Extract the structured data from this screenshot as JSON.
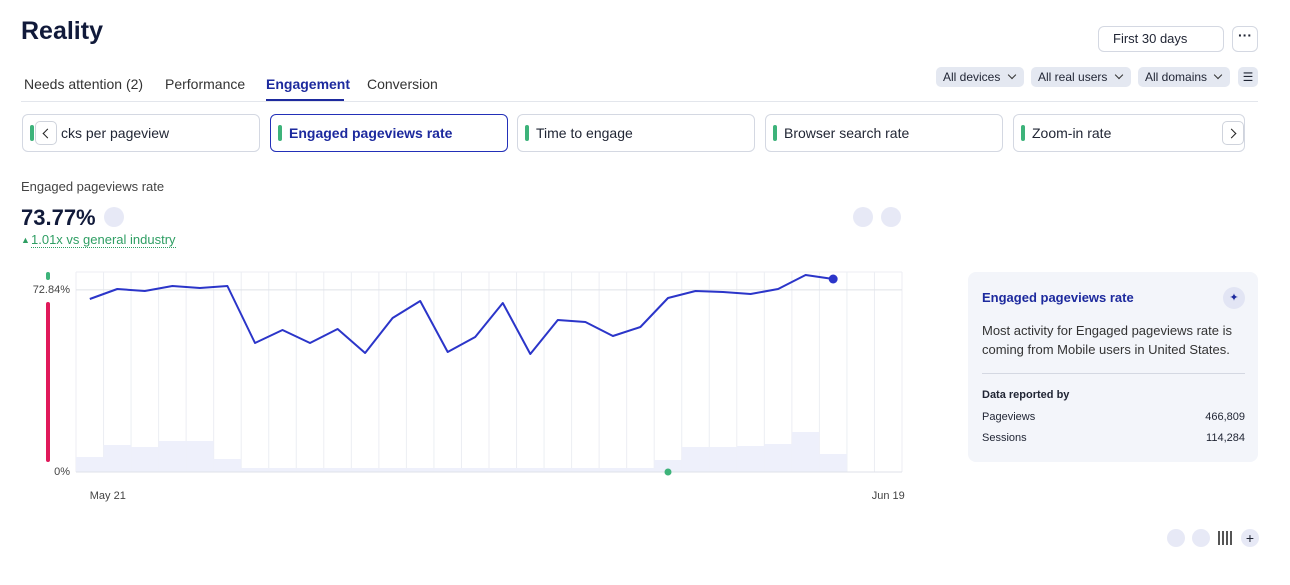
{
  "header": {
    "title": "Reality",
    "date_range": "First 30 days"
  },
  "tabs": [
    "Needs attention (2)",
    "Performance",
    "Engagement",
    "Conversion"
  ],
  "filters": [
    "All devices",
    "All real users",
    "All domains"
  ],
  "metric_cards": [
    "cks per pageview",
    "Engaged pageviews rate",
    "Time to engage",
    "Browser search rate",
    "Zoom-in rate"
  ],
  "metric": {
    "name": "Engaged pageviews rate",
    "value": "73.77%",
    "comparison": "1.01x vs general industry"
  },
  "chart_data": {
    "type": "line",
    "categories": [
      "May 21",
      null,
      null,
      null,
      null,
      null,
      null,
      null,
      null,
      null,
      null,
      null,
      null,
      null,
      null,
      null,
      null,
      null,
      null,
      null,
      null,
      null,
      null,
      null,
      null,
      null,
      null,
      null,
      null,
      "Jun 19"
    ],
    "series": [
      {
        "color": "#2b35c9",
        "values": [
          69.2,
          73.2,
          72.4,
          74.4,
          73.6,
          74.4,
          51.6,
          56.8,
          51.6,
          57.2,
          47.6,
          61.6,
          68.4,
          48.0,
          54.0,
          67.6,
          47.2,
          60.8,
          60.0,
          54.4,
          58.0,
          69.6,
          72.4,
          72.0,
          71.2,
          73.2,
          78.8,
          77.2,
          null,
          null
        ]
      },
      {
        "color": "#eef0fb",
        "axis": "y2",
        "values": [
          7.5,
          13.5,
          12.5,
          15.5,
          15.5,
          6.5,
          2,
          2,
          2,
          2,
          2,
          2,
          2,
          2,
          2,
          2,
          2,
          2,
          2,
          2,
          2,
          6,
          12.5,
          12.5,
          13,
          14,
          20,
          9,
          null,
          null
        ]
      }
    ],
    "ylim": [
      0,
      80
    ],
    "yticks": [
      {
        "value": 0,
        "label": "0%"
      },
      {
        "value": 72.84,
        "label": "72.84%"
      }
    ],
    "y2lim": [
      0,
      100
    ]
  },
  "panel": {
    "title": "Engaged pageviews rate",
    "text": "Most activity for Engaged pageviews rate is coming from Mobile users in United States.",
    "section": "Data reported by",
    "rows": [
      [
        "Pageviews",
        "466,809"
      ],
      [
        "Sessions",
        "114,284"
      ]
    ]
  }
}
